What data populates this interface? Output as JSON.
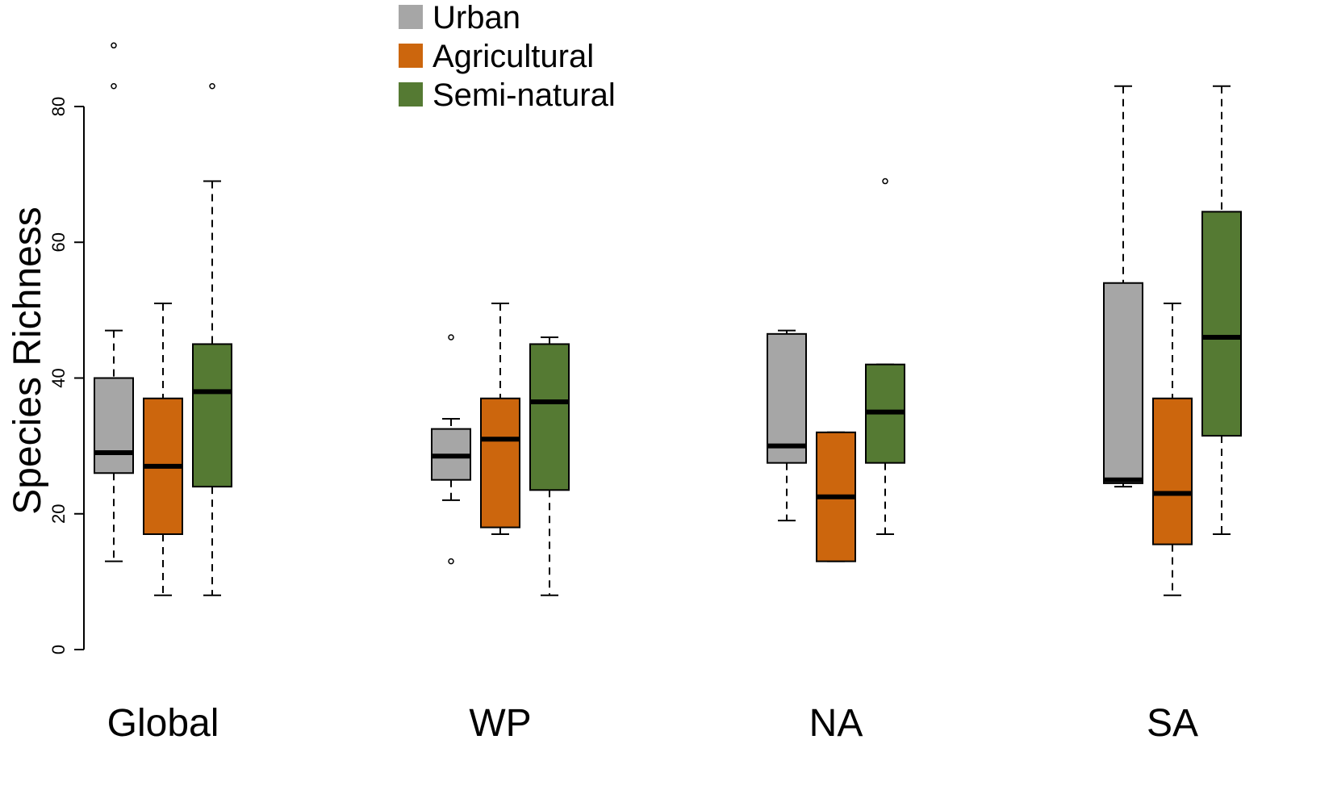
{
  "chart_data": {
    "type": "box",
    "title": "",
    "xlabel": "",
    "ylabel": "Species Richness",
    "ylim": [
      0,
      80
    ],
    "yticks": [
      0,
      20,
      40,
      60,
      80
    ],
    "grid": false,
    "legend_position": "top-center",
    "categories": [
      "Global",
      "WP",
      "NA",
      "SA"
    ],
    "series": [
      {
        "name": "Urban",
        "color": "#a6a6a6",
        "boxes": [
          {
            "group": "Global",
            "min": 13,
            "q1": 26,
            "median": 29,
            "q3": 40,
            "max": 47,
            "outliers": [
              83,
              89
            ]
          },
          {
            "group": "WP",
            "min": 22,
            "q1": 25,
            "median": 28.5,
            "q3": 32.5,
            "max": 34,
            "outliers": [
              13,
              46
            ]
          },
          {
            "group": "NA",
            "min": 19,
            "q1": 27.5,
            "median": 30,
            "q3": 46.5,
            "max": 47,
            "outliers": []
          },
          {
            "group": "SA",
            "min": 24,
            "q1": 24.5,
            "median": 25,
            "q3": 54,
            "max": 83,
            "outliers": []
          }
        ]
      },
      {
        "name": "Agricultural",
        "color": "#cc660d",
        "boxes": [
          {
            "group": "Global",
            "min": 8,
            "q1": 17,
            "median": 27,
            "q3": 37,
            "max": 51,
            "outliers": []
          },
          {
            "group": "WP",
            "min": 17,
            "q1": 18,
            "median": 31,
            "q3": 37,
            "max": 51,
            "outliers": []
          },
          {
            "group": "NA",
            "min": 13,
            "q1": 13,
            "median": 22.5,
            "q3": 32,
            "max": 32,
            "outliers": []
          },
          {
            "group": "SA",
            "min": 8,
            "q1": 15.5,
            "median": 23,
            "q3": 37,
            "max": 51,
            "outliers": []
          }
        ]
      },
      {
        "name": "Semi-natural",
        "color": "#557a33",
        "boxes": [
          {
            "group": "Global",
            "min": 8,
            "q1": 24,
            "median": 38,
            "q3": 45,
            "max": 69,
            "outliers": [
              83
            ]
          },
          {
            "group": "WP",
            "min": 8,
            "q1": 23.5,
            "median": 36.5,
            "q3": 45,
            "max": 46,
            "outliers": []
          },
          {
            "group": "NA",
            "min": 17,
            "q1": 27.5,
            "median": 35,
            "q3": 42,
            "max": 42,
            "outliers": [
              69
            ]
          },
          {
            "group": "SA",
            "min": 17,
            "q1": 31.5,
            "median": 46,
            "q3": 64.5,
            "max": 83,
            "outliers": []
          }
        ]
      }
    ]
  }
}
